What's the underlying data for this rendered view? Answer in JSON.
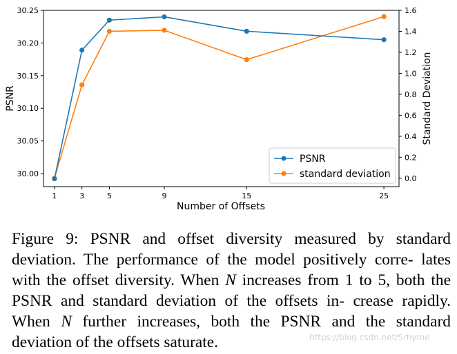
{
  "chart_data": {
    "type": "line",
    "x": [
      1,
      3,
      5,
      9,
      15,
      25
    ],
    "xticks": [
      "1",
      "3",
      "5",
      "9",
      "15",
      "25"
    ],
    "xlabel": "Number of Offsets",
    "series": [
      {
        "name": "PSNR",
        "axis": "left",
        "color": "#1f77b4",
        "values": [
          29.992,
          30.189,
          30.235,
          30.24,
          30.218,
          30.205
        ]
      },
      {
        "name": "standard deviation",
        "axis": "right",
        "color": "#ff7f0e",
        "values": [
          0.0,
          0.89,
          1.4,
          1.41,
          1.13,
          1.54
        ]
      }
    ],
    "y_left": {
      "label": "PSNR",
      "ylim": [
        29.98,
        30.25
      ],
      "ticks": [
        "30.00",
        "30.05",
        "30.10",
        "30.15",
        "30.20",
        "30.25"
      ]
    },
    "y_right": {
      "label": "Standard Deviation",
      "ylim": [
        -0.08,
        1.6
      ],
      "ticks": [
        "0.0",
        "0.2",
        "0.4",
        "0.6",
        "0.8",
        "1.0",
        "1.2",
        "1.4",
        "1.6"
      ]
    },
    "legend": {
      "position": "lower-right",
      "entries": [
        "PSNR",
        "standard deviation"
      ]
    }
  },
  "caption": {
    "line1": "Figure 9: PSNR and offset diversity measured by standard",
    "line2": "deviation. The performance of the model positively corre-",
    "line3a": "lates with the offset diversity. When ",
    "var1": "N",
    "line3b": " increases from 1 to",
    "line4": "5, both the PSNR and standard deviation of the offsets in-",
    "line5a": "crease rapidly. When ",
    "var2": "N",
    "line5b": " further increases, both the PSNR",
    "line6": "and the standard deviation of the offsets saturate."
  },
  "watermark": "https://blog.csdn.net/Srhyme"
}
